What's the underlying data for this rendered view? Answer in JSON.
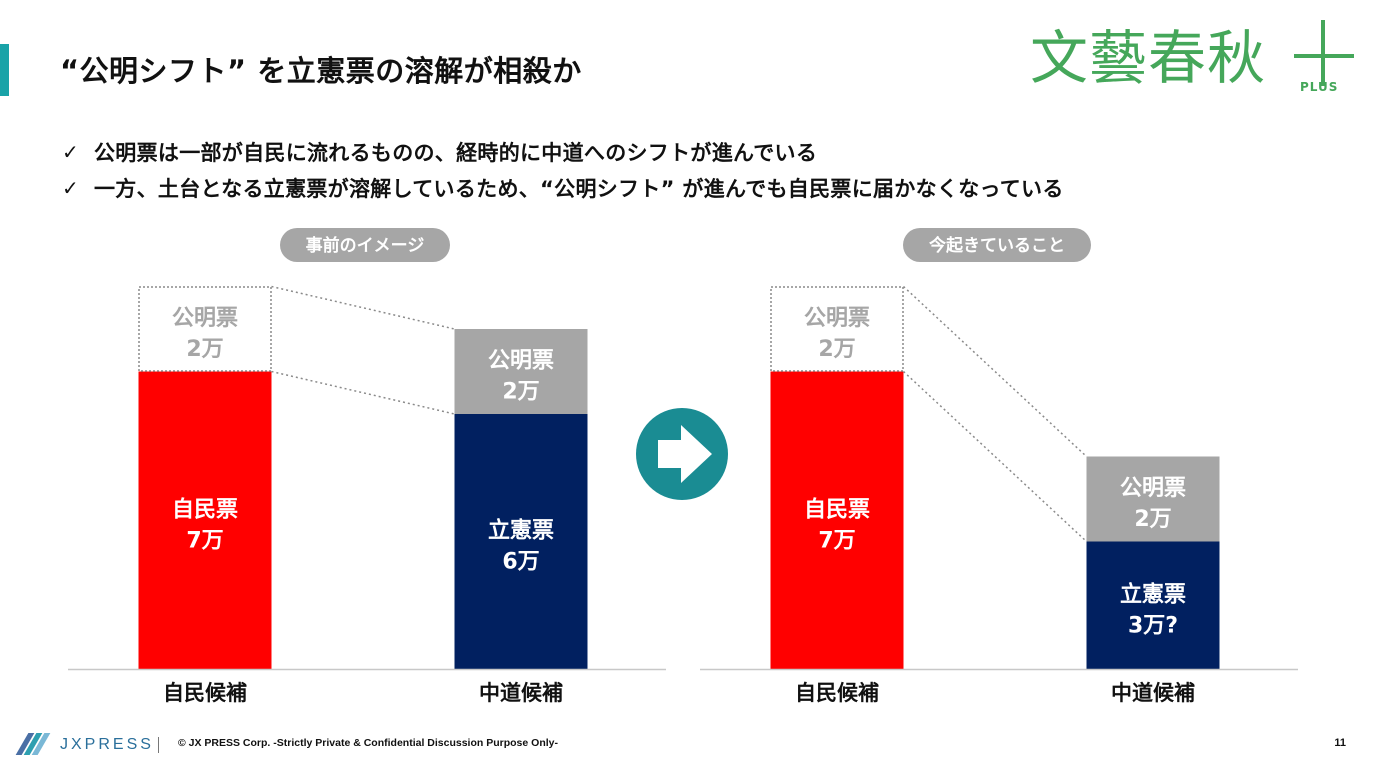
{
  "page": {
    "title": "“公明シフト” を立憲票の溶解が相殺か",
    "bullets": [
      "公明票は一部が自民に流れるものの、経時的に中道へのシフトが進んでいる",
      "一方、土台となる立憲票が溶解しているため、“公明シフト” が進んでも自民票に届かなくなっている"
    ],
    "page_number": "11"
  },
  "logo": {
    "main": "文藝春秋",
    "sub": "PLUS"
  },
  "footer": {
    "brand": "JXPRESS",
    "text": "© JX PRESS Corp.    -Strictly Private & Confidential    Discussion Purpose Only-"
  },
  "colors": {
    "jimin": "#ff0000",
    "rikken": "#012060",
    "komei": "#a6a6a6",
    "badge": "#a6a6a6",
    "arrow": "#1a8c93",
    "accent": "#19a3a8",
    "logo": "#45a75a"
  },
  "icons": {
    "transition": "right-arrow-circle-icon",
    "bullet": "check-icon"
  },
  "chart_data": [
    {
      "type": "bar",
      "stacked": true,
      "title": "事前のイメージ",
      "categories": [
        "自民候補",
        "中道候補"
      ],
      "unit": "万",
      "bars": [
        {
          "category": "自民候補",
          "segments": [
            {
              "label": "自民票",
              "value": 7,
              "value_text": "7万",
              "style": "solid-red"
            },
            {
              "label": "公明票",
              "value": 2,
              "value_text": "2万",
              "style": "dotted-outline"
            }
          ]
        },
        {
          "category": "中道候補",
          "segments": [
            {
              "label": "立憲票",
              "value": 6,
              "value_text": "6万",
              "style": "solid-navy"
            },
            {
              "label": "公明票",
              "value": 2,
              "value_text": "2万",
              "style": "solid-gray"
            }
          ]
        }
      ],
      "connectors": "dotted lines from 自民候補 公明票 segment to 中道候補 公明票 segment"
    },
    {
      "type": "bar",
      "stacked": true,
      "title": "今起きていること",
      "categories": [
        "自民候補",
        "中道候補"
      ],
      "unit": "万",
      "bars": [
        {
          "category": "自民候補",
          "segments": [
            {
              "label": "自民票",
              "value": 7,
              "value_text": "7万",
              "style": "solid-red"
            },
            {
              "label": "公明票",
              "value": 2,
              "value_text": "2万",
              "style": "dotted-outline"
            }
          ]
        },
        {
          "category": "中道候補",
          "segments": [
            {
              "label": "立憲票",
              "value": 3,
              "value_text": "3万?",
              "style": "solid-navy"
            },
            {
              "label": "公明票",
              "value": 2,
              "value_text": "2万",
              "style": "solid-gray"
            }
          ]
        }
      ],
      "connectors": "dotted lines from 自民候補 公明票 segment to 中道候補 公明票 segment"
    }
  ]
}
